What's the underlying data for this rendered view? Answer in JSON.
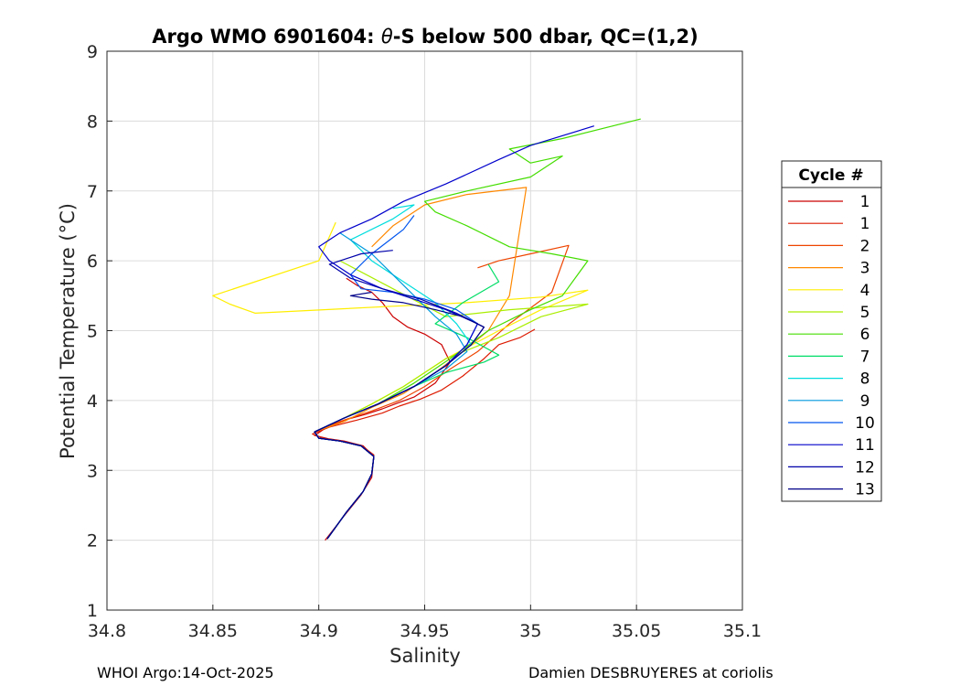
{
  "chart_data": {
    "type": "line",
    "title_prefix": "Argo WMO 6901604: ",
    "title_theta": "θ",
    "title_suffix": "-S below 500 dbar,  QC=(1,2)",
    "xlabel": "Salinity",
    "ylabel": "Potential Temperature (°C)",
    "xlim": [
      34.8,
      35.1
    ],
    "ylim": [
      1,
      9
    ],
    "xticks": [
      "34.8",
      "34.85",
      "34.9",
      "34.95",
      "35",
      "35.05",
      "35.1"
    ],
    "yticks": [
      "1",
      "2",
      "3",
      "4",
      "5",
      "6",
      "7",
      "8",
      "9"
    ],
    "grid": true,
    "legend_title": "Cycle #",
    "legend_position": "right-outside",
    "series": [
      {
        "name": "1",
        "color": "#cc0000",
        "x": [
          34.903,
          34.912,
          34.92,
          34.925,
          34.926,
          34.921,
          34.912,
          34.905,
          34.898,
          34.903,
          34.912,
          34.922,
          34.93,
          34.936,
          34.945,
          34.955,
          34.962,
          34.958,
          34.95,
          34.942,
          34.935,
          34.93,
          34.925,
          34.918,
          34.913
        ],
        "y": [
          2.0,
          2.35,
          2.65,
          2.9,
          3.2,
          3.35,
          3.42,
          3.45,
          3.5,
          3.6,
          3.72,
          3.8,
          3.88,
          3.95,
          4.05,
          4.25,
          4.55,
          4.8,
          4.95,
          5.05,
          5.2,
          5.4,
          5.55,
          5.65,
          5.75
        ]
      },
      {
        "name": "1",
        "color": "#dd1a00",
        "x": [
          34.904,
          34.913,
          34.921,
          34.925,
          34.926,
          34.92,
          34.91,
          34.902,
          34.897,
          34.905,
          34.918,
          34.93,
          34.938,
          34.948,
          34.958,
          34.968,
          34.978,
          34.985,
          34.995,
          35.002
        ],
        "y": [
          2.02,
          2.4,
          2.7,
          2.95,
          3.22,
          3.36,
          3.42,
          3.46,
          3.52,
          3.62,
          3.72,
          3.82,
          3.92,
          4.02,
          4.15,
          4.35,
          4.6,
          4.8,
          4.9,
          5.02
        ]
      },
      {
        "name": "2",
        "color": "#ee4400",
        "x": [
          34.904,
          34.913,
          34.921,
          34.925,
          34.926,
          34.92,
          34.91,
          34.9,
          34.898,
          34.91,
          34.925,
          34.938,
          34.95,
          34.962,
          34.975,
          34.99,
          35.01,
          35.018,
          35.0,
          34.985,
          34.975
        ],
        "y": [
          2.02,
          2.4,
          2.7,
          2.95,
          3.2,
          3.35,
          3.42,
          3.46,
          3.55,
          3.7,
          3.85,
          4.0,
          4.2,
          4.45,
          4.7,
          5.1,
          5.55,
          6.22,
          6.1,
          6.0,
          5.9
        ]
      },
      {
        "name": "3",
        "color": "#ff8800",
        "x": [
          34.904,
          34.913,
          34.921,
          34.925,
          34.926,
          34.92,
          34.91,
          34.9,
          34.898,
          34.912,
          34.925,
          34.94,
          34.955,
          34.968,
          34.98,
          34.99,
          34.998,
          34.97,
          34.95,
          34.935,
          34.925
        ],
        "y": [
          2.02,
          2.4,
          2.7,
          2.95,
          3.2,
          3.35,
          3.42,
          3.46,
          3.55,
          3.7,
          3.9,
          4.1,
          4.4,
          4.7,
          5.0,
          5.5,
          7.05,
          6.95,
          6.8,
          6.5,
          6.2
        ]
      },
      {
        "name": "4",
        "color": "#ffee00",
        "x": [
          34.904,
          34.913,
          34.921,
          34.925,
          34.926,
          34.92,
          34.91,
          34.9,
          34.898,
          34.912,
          34.925,
          34.94,
          34.96,
          34.985,
          35.005,
          35.027,
          35.005,
          34.97,
          34.935,
          34.87,
          34.858,
          34.85,
          34.87,
          34.9,
          34.908
        ],
        "y": [
          2.02,
          2.4,
          2.7,
          2.95,
          3.2,
          3.35,
          3.42,
          3.46,
          3.55,
          3.75,
          3.95,
          4.2,
          4.6,
          5.0,
          5.3,
          5.58,
          5.48,
          5.4,
          5.35,
          5.25,
          5.38,
          5.5,
          5.7,
          6.0,
          6.55
        ]
      },
      {
        "name": "5",
        "color": "#aaee00",
        "x": [
          34.904,
          34.913,
          34.921,
          34.925,
          34.926,
          34.92,
          34.91,
          34.9,
          34.898,
          34.912,
          34.925,
          34.94,
          34.96,
          34.985,
          35.005,
          35.027,
          34.99,
          34.96,
          34.935,
          34.91
        ],
        "y": [
          2.02,
          2.4,
          2.7,
          2.95,
          3.2,
          3.35,
          3.42,
          3.46,
          3.55,
          3.75,
          3.95,
          4.2,
          4.6,
          4.9,
          5.2,
          5.38,
          5.3,
          5.2,
          5.6,
          6.0
        ]
      },
      {
        "name": "6",
        "color": "#44dd00",
        "x": [
          34.904,
          34.913,
          34.921,
          34.925,
          34.926,
          34.92,
          34.91,
          34.9,
          34.898,
          34.912,
          34.928,
          34.945,
          34.962,
          34.98,
          35.0,
          35.015,
          35.027,
          35.01,
          34.99,
          34.97,
          34.955,
          34.95,
          34.97,
          35.0,
          35.015,
          35.0,
          34.99,
          35.015,
          35.052
        ],
        "y": [
          2.02,
          2.4,
          2.7,
          2.95,
          3.2,
          3.35,
          3.42,
          3.46,
          3.55,
          3.75,
          3.95,
          4.25,
          4.6,
          5.0,
          5.3,
          5.5,
          6.0,
          6.1,
          6.2,
          6.5,
          6.7,
          6.85,
          7.0,
          7.2,
          7.5,
          7.4,
          7.6,
          7.75,
          8.03
        ]
      },
      {
        "name": "7",
        "color": "#00dd66",
        "x": [
          34.904,
          34.913,
          34.921,
          34.925,
          34.926,
          34.92,
          34.91,
          34.9,
          34.898,
          34.912,
          34.928,
          34.945,
          34.96,
          34.978,
          34.985,
          34.97,
          34.955,
          34.968,
          34.985,
          34.98
        ],
        "y": [
          2.02,
          2.4,
          2.7,
          2.95,
          3.2,
          3.35,
          3.42,
          3.46,
          3.55,
          3.75,
          3.95,
          4.2,
          4.4,
          4.55,
          4.65,
          4.9,
          5.1,
          5.4,
          5.7,
          5.95
        ]
      },
      {
        "name": "8",
        "color": "#00dddd",
        "x": [
          34.904,
          34.913,
          34.921,
          34.925,
          34.926,
          34.92,
          34.91,
          34.9,
          34.898,
          34.912,
          34.928,
          34.945,
          34.96,
          34.972,
          34.965,
          34.955,
          34.94,
          34.925,
          34.915,
          34.935,
          34.945,
          34.935
        ],
        "y": [
          2.02,
          2.4,
          2.7,
          2.95,
          3.2,
          3.35,
          3.42,
          3.46,
          3.55,
          3.75,
          3.95,
          4.2,
          4.5,
          4.8,
          5.1,
          5.4,
          5.7,
          6.0,
          6.3,
          6.6,
          6.8,
          6.75
        ]
      },
      {
        "name": "9",
        "color": "#0099dd",
        "x": [
          34.904,
          34.913,
          34.921,
          34.925,
          34.926,
          34.92,
          34.91,
          34.9,
          34.898,
          34.912,
          34.928,
          34.945,
          34.96,
          34.97,
          34.965,
          34.955,
          34.945,
          34.935,
          34.925,
          34.915,
          34.91
        ],
        "y": [
          2.02,
          2.4,
          2.7,
          2.95,
          3.2,
          3.35,
          3.42,
          3.46,
          3.55,
          3.75,
          3.95,
          4.2,
          4.45,
          4.7,
          4.95,
          5.2,
          5.5,
          5.8,
          6.1,
          6.3,
          6.4
        ]
      },
      {
        "name": "10",
        "color": "#0055ee",
        "x": [
          34.904,
          34.913,
          34.921,
          34.925,
          34.926,
          34.92,
          34.91,
          34.9,
          34.898,
          34.912,
          34.928,
          34.945,
          34.96,
          34.97,
          34.975,
          34.965,
          34.95,
          34.935,
          34.92,
          34.915,
          34.925,
          34.94,
          34.945
        ],
        "y": [
          2.02,
          2.4,
          2.7,
          2.95,
          3.2,
          3.35,
          3.42,
          3.46,
          3.55,
          3.75,
          3.95,
          4.2,
          4.5,
          4.8,
          5.1,
          5.3,
          5.45,
          5.55,
          5.6,
          5.8,
          6.1,
          6.45,
          6.65
        ]
      },
      {
        "name": "11",
        "color": "#0000cc",
        "x": [
          34.904,
          34.913,
          34.921,
          34.925,
          34.926,
          34.92,
          34.91,
          34.9,
          34.898,
          34.912,
          34.928,
          34.945,
          34.96,
          34.97,
          34.975,
          34.96,
          34.945,
          34.93,
          34.915,
          34.905,
          34.9,
          34.91,
          34.925,
          34.94,
          34.96,
          34.985,
          35.0,
          35.03
        ],
        "y": [
          2.02,
          2.4,
          2.7,
          2.95,
          3.2,
          3.35,
          3.42,
          3.46,
          3.55,
          3.75,
          3.95,
          4.2,
          4.5,
          4.8,
          5.1,
          5.3,
          5.45,
          5.6,
          5.8,
          6.0,
          6.2,
          6.4,
          6.6,
          6.85,
          7.1,
          7.45,
          7.65,
          7.93
        ]
      },
      {
        "name": "12",
        "color": "#0000aa",
        "x": [
          34.904,
          34.913,
          34.921,
          34.925,
          34.926,
          34.92,
          34.91,
          34.9,
          34.898,
          34.912,
          34.928,
          34.945,
          34.96,
          34.972,
          34.978,
          34.965,
          34.948,
          34.93,
          34.915,
          34.905,
          34.92,
          34.935
        ],
        "y": [
          2.02,
          2.4,
          2.7,
          2.95,
          3.2,
          3.35,
          3.42,
          3.46,
          3.55,
          3.75,
          3.95,
          4.2,
          4.5,
          4.8,
          5.05,
          5.25,
          5.45,
          5.6,
          5.75,
          5.95,
          6.1,
          6.15
        ]
      },
      {
        "name": "13",
        "color": "#000088",
        "x": [
          34.904,
          34.913,
          34.921,
          34.925,
          34.926,
          34.92,
          34.91,
          34.9,
          34.898,
          34.912,
          34.928,
          34.945,
          34.96,
          34.972,
          34.978,
          34.968,
          34.955,
          34.94,
          34.925,
          34.915,
          34.925
        ],
        "y": [
          2.02,
          2.4,
          2.7,
          2.95,
          3.2,
          3.35,
          3.42,
          3.46,
          3.55,
          3.75,
          3.95,
          4.2,
          4.5,
          4.8,
          5.05,
          5.2,
          5.3,
          5.4,
          5.45,
          5.5,
          5.55
        ]
      }
    ]
  },
  "footer": {
    "left": "WHOI Argo:14-Oct-2025",
    "right": "Damien DESBRUYERES at coriolis"
  }
}
